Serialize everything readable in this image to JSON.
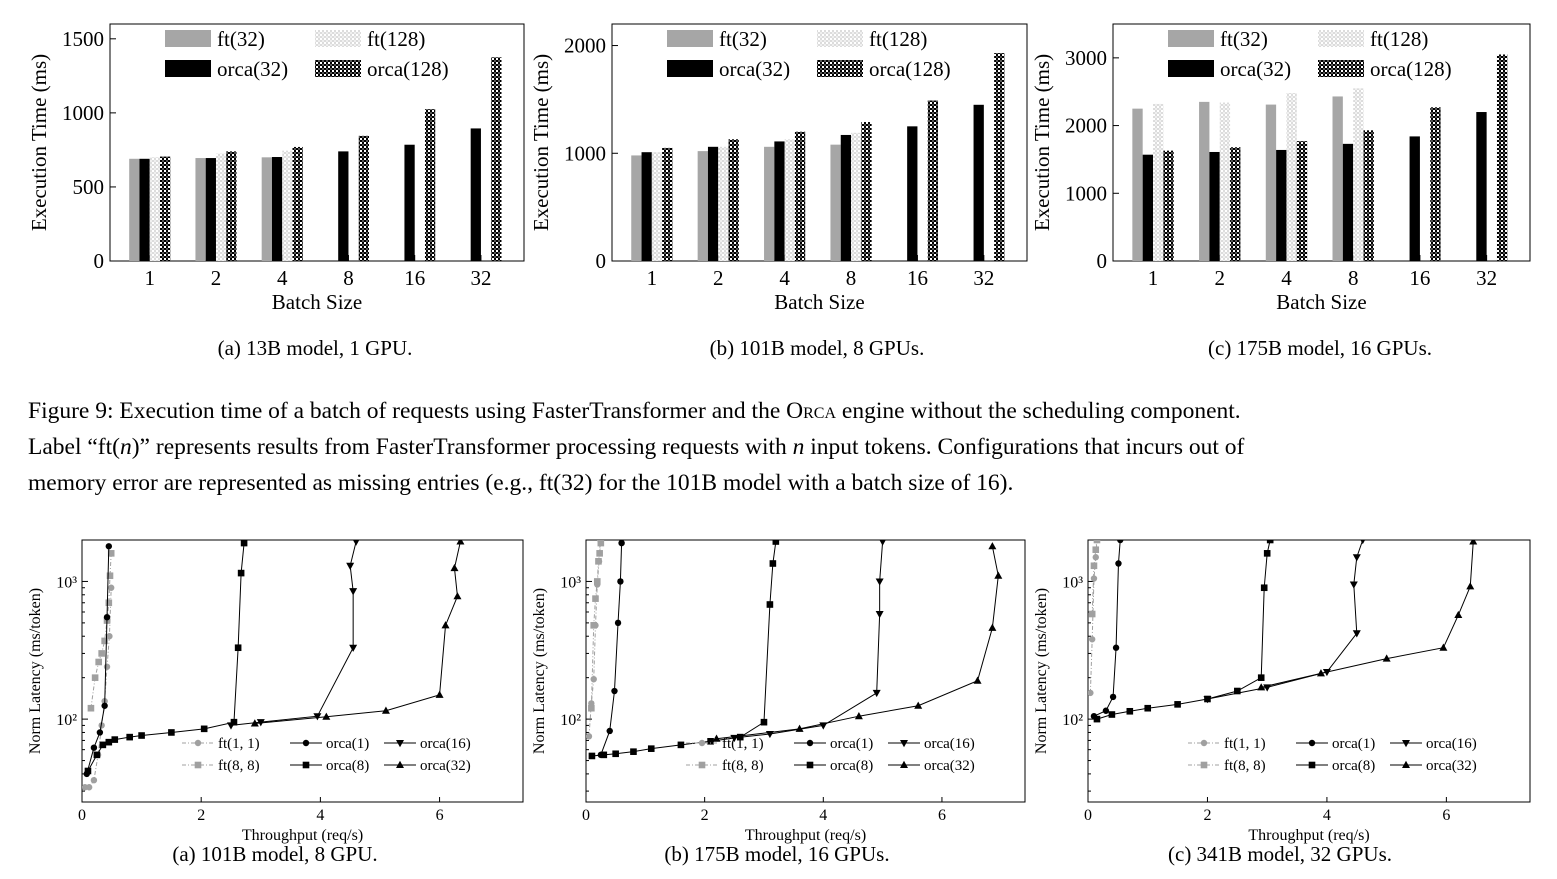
{
  "figure9": {
    "caption_prefix": "Figure 9: Execution time of a batch of requests using FasterTransformer and the ",
    "caption_engine": "Orca",
    "caption_line1_rest": " engine without the scheduling component.",
    "caption_line2_a": "Label “ft(",
    "caption_line2_n": "n",
    "caption_line2_b": ")” represents results from FasterTransformer processing requests with ",
    "caption_line2_n2": "n",
    "caption_line2_c": " input tokens. Configurations that incurs out of",
    "caption_line3": "memory error are represented as missing entries (e.g., ft(32) for the 101B model with a batch size of 16)."
  },
  "colors": {
    "ft32": "#a6a6a6",
    "ft128": "#dcdcdc",
    "orca32": "#000000",
    "orca128": "#3a3a3a",
    "ft_line": "#a0a0a0",
    "orca_line": "#000000"
  },
  "chart_data": [
    {
      "type": "bar",
      "subcaption": "(a) 13B model, 1 GPU.",
      "xlabel": "Batch Size",
      "ylabel": "Execution Time (ms)",
      "categories": [
        "1",
        "2",
        "4",
        "8",
        "16",
        "32"
      ],
      "ylim": [
        0,
        1600
      ],
      "yticks": [
        0,
        500,
        1000,
        1500
      ],
      "series": [
        {
          "name": "ft(32)",
          "values": [
            690,
            695,
            700,
            null,
            null,
            null
          ]
        },
        {
          "name": "orca(32)",
          "values": [
            690,
            695,
            702,
            740,
            785,
            895
          ]
        },
        {
          "name": "ft(128)",
          "values": [
            700,
            725,
            745,
            null,
            null,
            null
          ]
        },
        {
          "name": "orca(128)",
          "values": [
            705,
            740,
            770,
            845,
            1025,
            1375
          ]
        }
      ]
    },
    {
      "type": "bar",
      "subcaption": "(b) 101B model, 8 GPUs.",
      "xlabel": "Batch Size",
      "ylabel": "Execution Time (ms)",
      "categories": [
        "1",
        "2",
        "4",
        "8",
        "16",
        "32"
      ],
      "ylim": [
        0,
        2200
      ],
      "yticks": [
        0,
        1000,
        2000
      ],
      "series": [
        {
          "name": "ft(32)",
          "values": [
            980,
            1020,
            1060,
            1080,
            null,
            null
          ]
        },
        {
          "name": "orca(32)",
          "values": [
            1010,
            1060,
            1110,
            1170,
            1250,
            1450
          ]
        },
        {
          "name": "ft(128)",
          "values": [
            1010,
            1060,
            1130,
            1190,
            null,
            null
          ]
        },
        {
          "name": "orca(128)",
          "values": [
            1050,
            1130,
            1200,
            1290,
            1490,
            1930
          ]
        }
      ]
    },
    {
      "type": "bar",
      "subcaption": "(c) 175B model, 16 GPUs.",
      "xlabel": "Batch Size",
      "ylabel": "Execution Time (ms)",
      "categories": [
        "1",
        "2",
        "4",
        "8",
        "16",
        "32"
      ],
      "ylim": [
        0,
        3500
      ],
      "yticks": [
        0,
        1000,
        2000,
        3000
      ],
      "series": [
        {
          "name": "ft(32)",
          "values": [
            2250,
            2350,
            2310,
            2430,
            null,
            null
          ]
        },
        {
          "name": "orca(32)",
          "values": [
            1570,
            1610,
            1640,
            1730,
            1840,
            2200
          ]
        },
        {
          "name": "ft(128)",
          "values": [
            2320,
            2340,
            2480,
            2550,
            null,
            null
          ]
        },
        {
          "name": "orca(128)",
          "values": [
            1630,
            1680,
            1770,
            1930,
            2270,
            3050
          ]
        }
      ]
    },
    {
      "type": "line",
      "subcaption": "(a) 101B model, 8 GPU.",
      "xlabel": "Throughput (req/s)",
      "ylabel": "Norm Latency (ms/token)",
      "xlim": [
        0,
        7.4
      ],
      "xticks": [
        0,
        2,
        4,
        6
      ],
      "ylim": [
        25,
        2000
      ],
      "yscale": "log",
      "yticks": [
        {
          "value": 100,
          "label": "10²"
        },
        {
          "value": 1000,
          "label": "10³"
        }
      ],
      "series": [
        {
          "name": "ft(1, 1)",
          "x": [
            0.05,
            0.12,
            0.2,
            0.27,
            0.33,
            0.38,
            0.42,
            0.46,
            0.49
          ],
          "y": [
            32,
            32,
            36,
            55,
            90,
            135,
            240,
            400,
            900
          ]
        },
        {
          "name": "ft(8, 8)",
          "x": [
            0.15,
            0.22,
            0.28,
            0.33,
            0.38,
            0.42,
            0.45,
            0.47,
            0.49
          ],
          "y": [
            120,
            200,
            260,
            300,
            370,
            520,
            700,
            1100,
            1600
          ]
        },
        {
          "name": "orca(1)",
          "x": [
            0.08,
            0.2,
            0.3,
            0.38,
            0.42,
            0.45
          ],
          "y": [
            40,
            62,
            80,
            125,
            550,
            1800
          ]
        },
        {
          "name": "orca(8)",
          "x": [
            0.1,
            0.25,
            0.35,
            0.45,
            0.55,
            0.8,
            1.0,
            1.5,
            2.05,
            2.55,
            2.62,
            2.67,
            2.72
          ],
          "y": [
            42,
            55,
            65,
            68,
            71,
            74,
            76,
            80,
            85,
            95,
            330,
            1150,
            1900
          ]
        },
        {
          "name": "orca(16)",
          "x": [
            2.5,
            3.0,
            3.95,
            4.55,
            4.55,
            4.5,
            4.6
          ],
          "y": [
            90,
            95,
            105,
            330,
            850,
            1300,
            1950
          ]
        },
        {
          "name": "orca(32)",
          "x": [
            2.9,
            4.1,
            5.1,
            6.0,
            6.1,
            6.3,
            6.25,
            6.35
          ],
          "y": [
            93,
            104,
            115,
            150,
            480,
            780,
            1250,
            1950
          ]
        }
      ]
    },
    {
      "type": "line",
      "subcaption": "(b) 175B model, 16 GPUs.",
      "xlabel": "Throughput (req/s)",
      "ylabel": "Norm Latency (ms/token)",
      "xlim": [
        0,
        7.4
      ],
      "xticks": [
        0,
        2,
        4,
        6
      ],
      "ylim": [
        25,
        2000
      ],
      "yscale": "log",
      "yticks": [
        {
          "value": 100,
          "label": "10²"
        },
        {
          "value": 1000,
          "label": "10³"
        }
      ],
      "series": [
        {
          "name": "ft(1, 1)",
          "x": [
            0.05,
            0.09,
            0.13,
            0.16,
            0.19,
            0.22,
            0.24
          ],
          "y": [
            75,
            130,
            195,
            480,
            950,
            1400,
            2000
          ]
        },
        {
          "name": "ft(8, 8)",
          "x": [
            0.09,
            0.13,
            0.16,
            0.19,
            0.21,
            0.23,
            0.25
          ],
          "y": [
            120,
            480,
            750,
            1000,
            1400,
            1600,
            1900
          ]
        },
        {
          "name": "orca(1)",
          "x": [
            0.25,
            0.4,
            0.48,
            0.54,
            0.58,
            0.6
          ],
          "y": [
            55,
            82,
            160,
            500,
            1000,
            1900
          ]
        },
        {
          "name": "orca(8)",
          "x": [
            0.1,
            0.3,
            0.5,
            0.8,
            1.1,
            1.6,
            2.1,
            2.6,
            3.0,
            3.1,
            3.15,
            3.2
          ],
          "y": [
            54,
            55,
            56,
            58,
            61,
            65,
            69,
            74,
            95,
            680,
            1350,
            1950
          ]
        },
        {
          "name": "orca(16)",
          "x": [
            2.5,
            3.1,
            4.0,
            4.9,
            4.95,
            4.95,
            5.0
          ],
          "y": [
            73,
            78,
            90,
            155,
            580,
            1000,
            1950
          ]
        },
        {
          "name": "orca(32)",
          "x": [
            2.2,
            3.6,
            4.6,
            5.6,
            6.6,
            6.85,
            6.95,
            6.85
          ],
          "y": [
            72,
            85,
            105,
            125,
            190,
            460,
            1100,
            1800
          ]
        }
      ]
    },
    {
      "type": "line",
      "subcaption": "(c) 341B model, 32 GPUs.",
      "xlabel": "Throughput (req/s)",
      "ylabel": "Norm Latency (ms/token)",
      "xlim": [
        0,
        7.4
      ],
      "xticks": [
        0,
        2,
        4,
        6
      ],
      "ylim": [
        25,
        2000
      ],
      "yscale": "log",
      "yticks": [
        {
          "value": 100,
          "label": "10²"
        },
        {
          "value": 1000,
          "label": "10³"
        }
      ],
      "series": [
        {
          "name": "ft(1, 1)",
          "x": [
            0.04,
            0.07,
            0.1,
            0.13,
            0.15
          ],
          "y": [
            155,
            380,
            1050,
            1500,
            2000
          ]
        },
        {
          "name": "ft(8, 8)",
          "x": [
            0.07,
            0.1,
            0.13,
            0.15
          ],
          "y": [
            580,
            1300,
            1700,
            2000
          ]
        },
        {
          "name": "orca(1)",
          "x": [
            0.1,
            0.3,
            0.42,
            0.47,
            0.51,
            0.54
          ],
          "y": [
            105,
            115,
            145,
            330,
            1350,
            2000
          ]
        },
        {
          "name": "orca(8)",
          "x": [
            0.15,
            0.4,
            0.7,
            1.0,
            1.5,
            2.0,
            2.5,
            2.9,
            2.95,
            3.0,
            3.05
          ],
          "y": [
            100,
            108,
            114,
            120,
            128,
            140,
            160,
            200,
            900,
            1600,
            2000
          ]
        },
        {
          "name": "orca(16)",
          "x": [
            2.0,
            3.0,
            4.0,
            4.5,
            4.45,
            4.5,
            4.6
          ],
          "y": [
            140,
            170,
            220,
            420,
            950,
            1500,
            2000
          ]
        },
        {
          "name": "orca(32)",
          "x": [
            2.9,
            3.9,
            5.0,
            5.95,
            6.2,
            6.4,
            6.45
          ],
          "y": [
            170,
            215,
            275,
            330,
            570,
            920,
            1950
          ]
        }
      ]
    }
  ]
}
